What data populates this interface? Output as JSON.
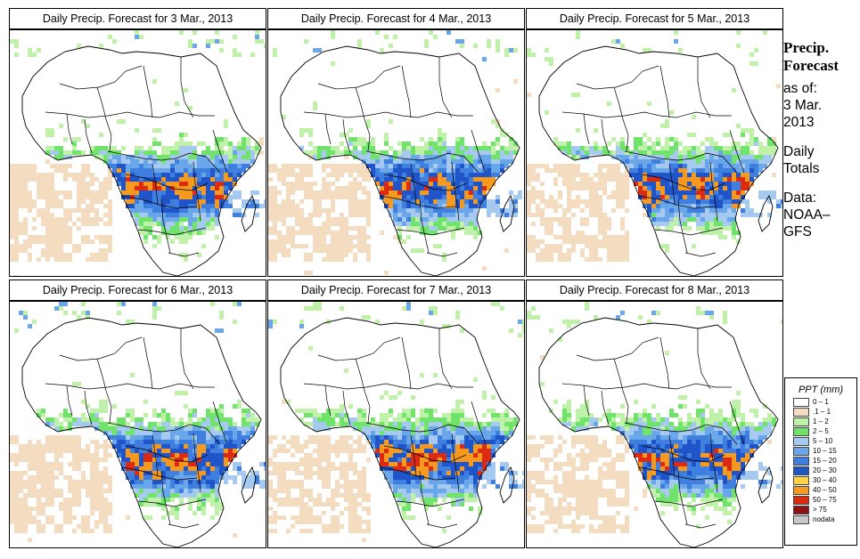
{
  "panels": [
    {
      "title": "Daily Precip. Forecast for  3 Mar., 2013",
      "seed": 31
    },
    {
      "title": "Daily Precip. Forecast for  4 Mar., 2013",
      "seed": 42
    },
    {
      "title": "Daily Precip. Forecast for  5 Mar., 2013",
      "seed": 53
    },
    {
      "title": "Daily Precip. Forecast for  6 Mar., 2013",
      "seed": 64
    },
    {
      "title": "Daily Precip. Forecast for  7 Mar., 2013",
      "seed": 75
    },
    {
      "title": "Daily Precip. Forecast for  8 Mar., 2013",
      "seed": 86
    }
  ],
  "side": {
    "title_line1": "Precip.",
    "title_line2": "Forecast",
    "asof_line1": "as of:",
    "asof_line2": "3 Mar.",
    "asof_line3": "2013",
    "totals_line1": "Daily",
    "totals_line2": "Totals",
    "data_line1": "Data:",
    "data_line2": "NOAA–",
    "data_line3": "GFS"
  },
  "legend": {
    "title": "PPT (mm)",
    "items": [
      {
        "label": "0 – 1",
        "color": "#ffffff"
      },
      {
        "label": ".1 – 1",
        "color": "#f3dcc0"
      },
      {
        "label": "1 – 2",
        "color": "#bff1a8"
      },
      {
        "label": "2 – 5",
        "color": "#6fe36a"
      },
      {
        "label": "5 – 10",
        "color": "#a6c9f0"
      },
      {
        "label": "10 – 15",
        "color": "#6aa6ea"
      },
      {
        "label": "15 – 20",
        "color": "#3f7fe0"
      },
      {
        "label": "20 – 30",
        "color": "#1f55c8"
      },
      {
        "label": "30 – 40",
        "color": "#ffd24a"
      },
      {
        "label": "40 – 50",
        "color": "#f59a1e"
      },
      {
        "label": "50 – 75",
        "color": "#dd2a12"
      },
      {
        "label": "> 75",
        "color": "#8f1010"
      },
      {
        "label": "nodata",
        "color": "#c8c8c8"
      }
    ]
  }
}
